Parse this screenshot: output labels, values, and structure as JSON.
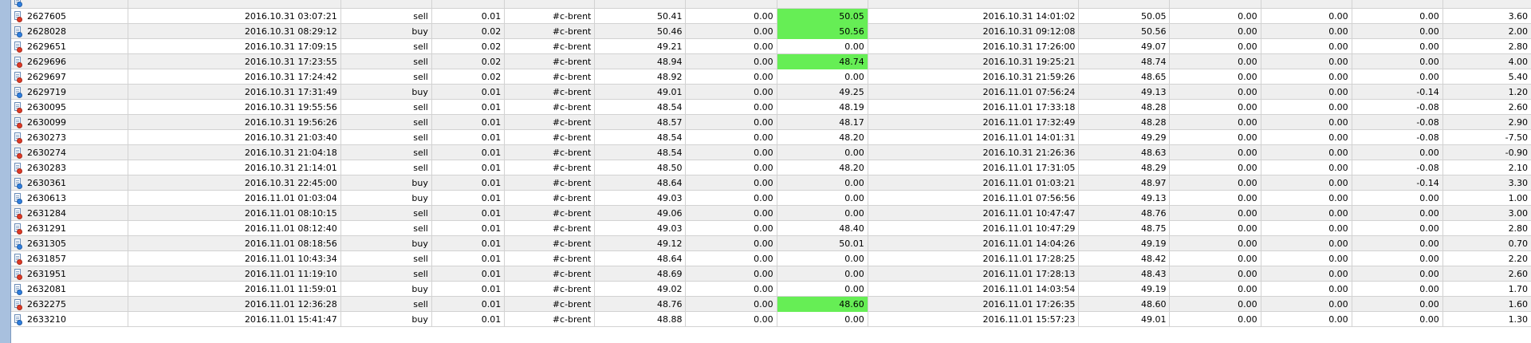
{
  "colors": {
    "sell_dot": "#e03a26",
    "buy_dot": "#2f7fe0",
    "highlight": "#66ee55",
    "row_alt": "#efefef",
    "grid_line": "#d2d2d2"
  },
  "icons": {
    "sell": "sell-order-icon",
    "buy": "buy-order-icon"
  },
  "rows": [
    {
      "ticket": "2627605",
      "open_time": "2016.10.31 03:07:21",
      "type": "sell",
      "size": "0.01",
      "item": "#c-brent",
      "open_price": "50.41",
      "sl": "0.00",
      "tp": "50.05",
      "tp_highlight": true,
      "close_time": "2016.10.31 14:01:02",
      "close_price": "50.05",
      "commission": "0.00",
      "taxes": "0.00",
      "swap": "0.00",
      "profit": "3.60"
    },
    {
      "ticket": "2628028",
      "open_time": "2016.10.31 08:29:12",
      "type": "buy",
      "size": "0.02",
      "item": "#c-brent",
      "open_price": "50.46",
      "sl": "0.00",
      "tp": "50.56",
      "tp_highlight": true,
      "close_time": "2016.10.31 09:12:08",
      "close_price": "50.56",
      "commission": "0.00",
      "taxes": "0.00",
      "swap": "0.00",
      "profit": "2.00"
    },
    {
      "ticket": "2629651",
      "open_time": "2016.10.31 17:09:15",
      "type": "sell",
      "size": "0.02",
      "item": "#c-brent",
      "open_price": "49.21",
      "sl": "0.00",
      "tp": "0.00",
      "tp_highlight": false,
      "close_time": "2016.10.31 17:26:00",
      "close_price": "49.07",
      "commission": "0.00",
      "taxes": "0.00",
      "swap": "0.00",
      "profit": "2.80"
    },
    {
      "ticket": "2629696",
      "open_time": "2016.10.31 17:23:55",
      "type": "sell",
      "size": "0.02",
      "item": "#c-brent",
      "open_price": "48.94",
      "sl": "0.00",
      "tp": "48.74",
      "tp_highlight": true,
      "close_time": "2016.10.31 19:25:21",
      "close_price": "48.74",
      "commission": "0.00",
      "taxes": "0.00",
      "swap": "0.00",
      "profit": "4.00"
    },
    {
      "ticket": "2629697",
      "open_time": "2016.10.31 17:24:42",
      "type": "sell",
      "size": "0.02",
      "item": "#c-brent",
      "open_price": "48.92",
      "sl": "0.00",
      "tp": "0.00",
      "tp_highlight": false,
      "close_time": "2016.10.31 21:59:26",
      "close_price": "48.65",
      "commission": "0.00",
      "taxes": "0.00",
      "swap": "0.00",
      "profit": "5.40"
    },
    {
      "ticket": "2629719",
      "open_time": "2016.10.31 17:31:49",
      "type": "buy",
      "size": "0.01",
      "item": "#c-brent",
      "open_price": "49.01",
      "sl": "0.00",
      "tp": "49.25",
      "tp_highlight": false,
      "close_time": "2016.11.01 07:56:24",
      "close_price": "49.13",
      "commission": "0.00",
      "taxes": "0.00",
      "swap": "-0.14",
      "profit": "1.20"
    },
    {
      "ticket": "2630095",
      "open_time": "2016.10.31 19:55:56",
      "type": "sell",
      "size": "0.01",
      "item": "#c-brent",
      "open_price": "48.54",
      "sl": "0.00",
      "tp": "48.19",
      "tp_highlight": false,
      "close_time": "2016.11.01 17:33:18",
      "close_price": "48.28",
      "commission": "0.00",
      "taxes": "0.00",
      "swap": "-0.08",
      "profit": "2.60"
    },
    {
      "ticket": "2630099",
      "open_time": "2016.10.31 19:56:26",
      "type": "sell",
      "size": "0.01",
      "item": "#c-brent",
      "open_price": "48.57",
      "sl": "0.00",
      "tp": "48.17",
      "tp_highlight": false,
      "close_time": "2016.11.01 17:32:49",
      "close_price": "48.28",
      "commission": "0.00",
      "taxes": "0.00",
      "swap": "-0.08",
      "profit": "2.90"
    },
    {
      "ticket": "2630273",
      "open_time": "2016.10.31 21:03:40",
      "type": "sell",
      "size": "0.01",
      "item": "#c-brent",
      "open_price": "48.54",
      "sl": "0.00",
      "tp": "48.20",
      "tp_highlight": false,
      "close_time": "2016.11.01 14:01:31",
      "close_price": "49.29",
      "commission": "0.00",
      "taxes": "0.00",
      "swap": "-0.08",
      "profit": "-7.50"
    },
    {
      "ticket": "2630274",
      "open_time": "2016.10.31 21:04:18",
      "type": "sell",
      "size": "0.01",
      "item": "#c-brent",
      "open_price": "48.54",
      "sl": "0.00",
      "tp": "0.00",
      "tp_highlight": false,
      "close_time": "2016.10.31 21:26:36",
      "close_price": "48.63",
      "commission": "0.00",
      "taxes": "0.00",
      "swap": "0.00",
      "profit": "-0.90"
    },
    {
      "ticket": "2630283",
      "open_time": "2016.10.31 21:14:01",
      "type": "sell",
      "size": "0.01",
      "item": "#c-brent",
      "open_price": "48.50",
      "sl": "0.00",
      "tp": "48.20",
      "tp_highlight": false,
      "close_time": "2016.11.01 17:31:05",
      "close_price": "48.29",
      "commission": "0.00",
      "taxes": "0.00",
      "swap": "-0.08",
      "profit": "2.10"
    },
    {
      "ticket": "2630361",
      "open_time": "2016.10.31 22:45:00",
      "type": "buy",
      "size": "0.01",
      "item": "#c-brent",
      "open_price": "48.64",
      "sl": "0.00",
      "tp": "0.00",
      "tp_highlight": false,
      "close_time": "2016.11.01 01:03:21",
      "close_price": "48.97",
      "commission": "0.00",
      "taxes": "0.00",
      "swap": "-0.14",
      "profit": "3.30"
    },
    {
      "ticket": "2630613",
      "open_time": "2016.11.01 01:03:04",
      "type": "buy",
      "size": "0.01",
      "item": "#c-brent",
      "open_price": "49.03",
      "sl": "0.00",
      "tp": "0.00",
      "tp_highlight": false,
      "close_time": "2016.11.01 07:56:56",
      "close_price": "49.13",
      "commission": "0.00",
      "taxes": "0.00",
      "swap": "0.00",
      "profit": "1.00"
    },
    {
      "ticket": "2631284",
      "open_time": "2016.11.01 08:10:15",
      "type": "sell",
      "size": "0.01",
      "item": "#c-brent",
      "open_price": "49.06",
      "sl": "0.00",
      "tp": "0.00",
      "tp_highlight": false,
      "close_time": "2016.11.01 10:47:47",
      "close_price": "48.76",
      "commission": "0.00",
      "taxes": "0.00",
      "swap": "0.00",
      "profit": "3.00"
    },
    {
      "ticket": "2631291",
      "open_time": "2016.11.01 08:12:40",
      "type": "sell",
      "size": "0.01",
      "item": "#c-brent",
      "open_price": "49.03",
      "sl": "0.00",
      "tp": "48.40",
      "tp_highlight": false,
      "close_time": "2016.11.01 10:47:29",
      "close_price": "48.75",
      "commission": "0.00",
      "taxes": "0.00",
      "swap": "0.00",
      "profit": "2.80"
    },
    {
      "ticket": "2631305",
      "open_time": "2016.11.01 08:18:56",
      "type": "buy",
      "size": "0.01",
      "item": "#c-brent",
      "open_price": "49.12",
      "sl": "0.00",
      "tp": "50.01",
      "tp_highlight": false,
      "close_time": "2016.11.01 14:04:26",
      "close_price": "49.19",
      "commission": "0.00",
      "taxes": "0.00",
      "swap": "0.00",
      "profit": "0.70"
    },
    {
      "ticket": "2631857",
      "open_time": "2016.11.01 10:43:34",
      "type": "sell",
      "size": "0.01",
      "item": "#c-brent",
      "open_price": "48.64",
      "sl": "0.00",
      "tp": "0.00",
      "tp_highlight": false,
      "close_time": "2016.11.01 17:28:25",
      "close_price": "48.42",
      "commission": "0.00",
      "taxes": "0.00",
      "swap": "0.00",
      "profit": "2.20"
    },
    {
      "ticket": "2631951",
      "open_time": "2016.11.01 11:19:10",
      "type": "sell",
      "size": "0.01",
      "item": "#c-brent",
      "open_price": "48.69",
      "sl": "0.00",
      "tp": "0.00",
      "tp_highlight": false,
      "close_time": "2016.11.01 17:28:13",
      "close_price": "48.43",
      "commission": "0.00",
      "taxes": "0.00",
      "swap": "0.00",
      "profit": "2.60"
    },
    {
      "ticket": "2632081",
      "open_time": "2016.11.01 11:59:01",
      "type": "buy",
      "size": "0.01",
      "item": "#c-brent",
      "open_price": "49.02",
      "sl": "0.00",
      "tp": "0.00",
      "tp_highlight": false,
      "close_time": "2016.11.01 14:03:54",
      "close_price": "49.19",
      "commission": "0.00",
      "taxes": "0.00",
      "swap": "0.00",
      "profit": "1.70"
    },
    {
      "ticket": "2632275",
      "open_time": "2016.11.01 12:36:28",
      "type": "sell",
      "size": "0.01",
      "item": "#c-brent",
      "open_price": "48.76",
      "sl": "0.00",
      "tp": "48.60",
      "tp_highlight": true,
      "close_time": "2016.11.01 17:26:35",
      "close_price": "48.60",
      "commission": "0.00",
      "taxes": "0.00",
      "swap": "0.00",
      "profit": "1.60"
    },
    {
      "ticket": "2633210",
      "open_time": "2016.11.01 15:41:47",
      "type": "buy",
      "size": "0.01",
      "item": "#c-brent",
      "open_price": "48.88",
      "sl": "0.00",
      "tp": "0.00",
      "tp_highlight": false,
      "close_time": "2016.11.01 15:57:23",
      "close_price": "49.01",
      "commission": "0.00",
      "taxes": "0.00",
      "swap": "0.00",
      "profit": "1.30"
    }
  ]
}
